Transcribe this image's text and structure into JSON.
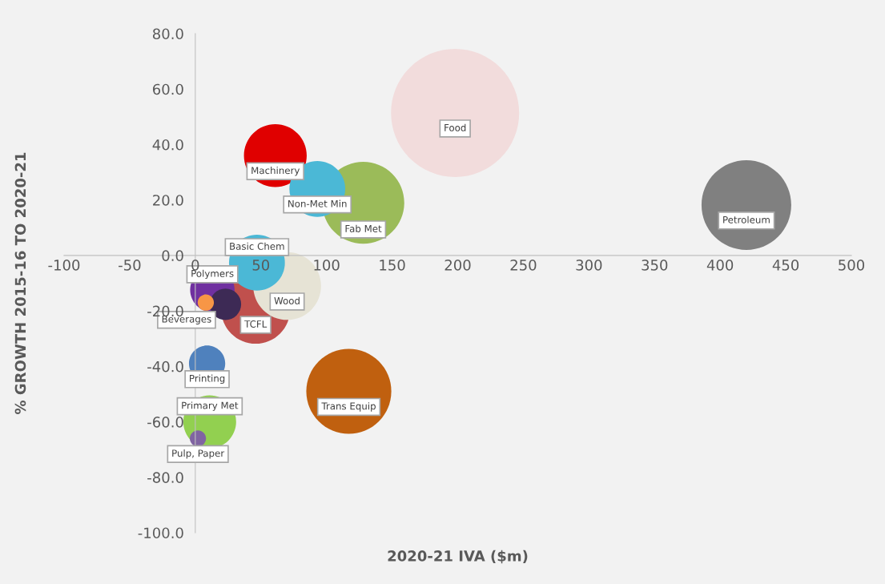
{
  "chart_data": {
    "type": "bubble",
    "xlabel": "2020-21 IVA ($m)",
    "ylabel": "% GROWTH 2015-16 TO 2020-21",
    "x": [
      198,
      420,
      61,
      93,
      128,
      47,
      70,
      13,
      46,
      23,
      8,
      9,
      117,
      11,
      2
    ],
    "values": [
      51.4,
      18.2,
      36,
      24,
      19,
      -2.6,
      -11,
      -12.4,
      -19.4,
      -17.6,
      -17,
      -39,
      -49,
      -60,
      -66
    ],
    "sizes": [
      1,
      0.49,
      0.24,
      0.19,
      0.41,
      0.19,
      0.28,
      0.12,
      0.29,
      0.06,
      0.016,
      0.08,
      0.44,
      0.17,
      0.016
    ],
    "colors": [
      "#f2dcdc",
      "#808080",
      "#e00000",
      "#4bb8d6",
      "#9bbb59",
      "#4bb8d6",
      "#e6e3d5",
      "#7030a0",
      "#c0504d",
      "#3d2a55",
      "#f79646",
      "#4f81bd",
      "#c0600f",
      "#92d050",
      "#8064a2"
    ],
    "annotations": [
      {
        "text": "Food",
        "x": 198,
        "y": 51.4
      },
      {
        "text": "Petroleum",
        "x": 420,
        "y": 18.2
      },
      {
        "text": "Machinery",
        "x": 61,
        "y": 36
      },
      {
        "text": "Non-Met Min",
        "x": 93,
        "y": 24
      },
      {
        "text": "Fab Met",
        "x": 128,
        "y": 19
      },
      {
        "text": "Basic Chem",
        "x": 47,
        "y": -2.6
      },
      {
        "text": "Wood",
        "x": 70,
        "y": -11
      },
      {
        "text": "Polymers",
        "x": 13,
        "y": -12.4
      },
      {
        "text": "TCFL",
        "x": 46,
        "y": -19.4
      },
      {
        "text": "Beverages",
        "x": 23,
        "y": -17.6
      },
      {
        "text": "Printing",
        "x": 9,
        "y": -39
      },
      {
        "text": "Trans Equip",
        "x": 117,
        "y": -49
      },
      {
        "text": "Primary Met",
        "x": 11,
        "y": -60
      },
      {
        "text": "Pulp, Paper",
        "x": 2,
        "y": -66
      }
    ],
    "xlim": [
      -100,
      500
    ],
    "xticks": [
      -100,
      -50,
      0,
      50,
      100,
      150,
      200,
      250,
      300,
      350,
      400,
      450,
      500
    ],
    "ylim": [
      -100,
      80
    ],
    "yticks": [
      {
        "value": -100,
        "label": "-100.0"
      },
      {
        "value": -80,
        "label": "-80.0"
      },
      {
        "value": -60,
        "label": "-60.0"
      },
      {
        "value": -40,
        "label": "-40.0"
      },
      {
        "value": -20,
        "label": "-20.0"
      },
      {
        "value": 0,
        "label": "0.0"
      },
      {
        "value": 20,
        "label": "20.0"
      },
      {
        "value": 40,
        "label": "40.0"
      },
      {
        "value": 60,
        "label": "60.0"
      },
      {
        "value": 80,
        "label": "80.0"
      }
    ],
    "grid": false,
    "legend": false,
    "marker": "circle"
  }
}
